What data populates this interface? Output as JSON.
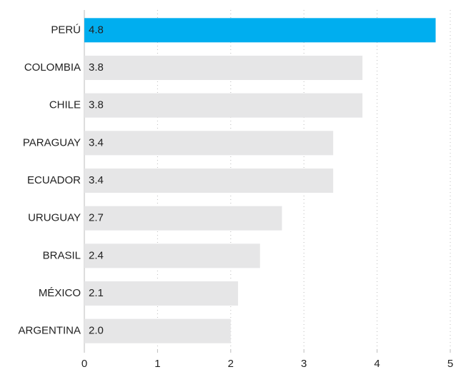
{
  "chart_data": {
    "type": "bar",
    "orientation": "horizontal",
    "categories": [
      "PERÚ",
      "COLOMBIA",
      "CHILE",
      "PARAGUAY",
      "ECUADOR",
      "URUGUAY",
      "BRASIL",
      "MÉXICO",
      "ARGENTINA"
    ],
    "values": [
      4.8,
      3.8,
      3.8,
      3.4,
      3.4,
      2.7,
      2.4,
      2.1,
      2.0
    ],
    "value_labels": [
      "4.8",
      "3.8",
      "3.8",
      "3.4",
      "3.4",
      "2.7",
      "2.4",
      "2.1",
      "2.0"
    ],
    "colors": [
      "#00aeef",
      "#e6e6e7",
      "#e6e6e7",
      "#e6e6e7",
      "#e6e6e7",
      "#e6e6e7",
      "#e6e6e7",
      "#e6e6e7",
      "#e6e6e7"
    ],
    "xlim": [
      0,
      5
    ],
    "xticks": [
      0,
      1,
      2,
      3,
      4,
      5
    ],
    "grid": true
  }
}
